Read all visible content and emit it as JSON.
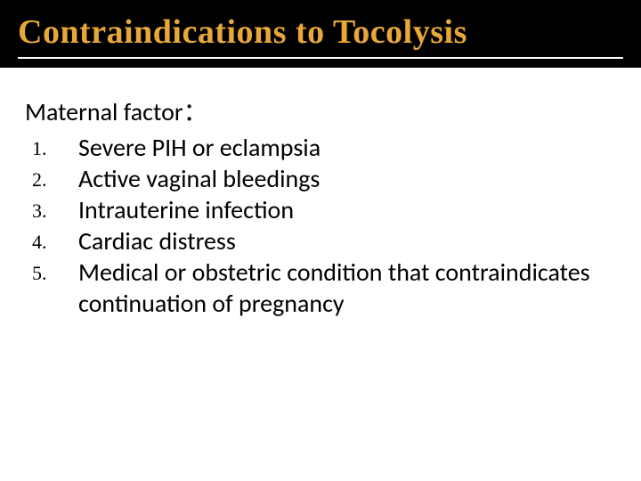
{
  "title": "Contraindications to Tocolysis",
  "subheading": "Maternal factor：",
  "items": [
    "Severe PIH or eclampsia",
    "Active vaginal bleedings",
    "Intrauterine infection",
    "Cardiac distress",
    "Medical or obstetric condition that contraindicates continuation of pregnancy"
  ],
  "colors": {
    "title_bg": "#000000",
    "title_fg": "#e8a839",
    "body_bg": "#ffffff",
    "text": "#000000",
    "rule": "#ffffff"
  },
  "fonts": {
    "title_size": 38,
    "body_size": 28,
    "number_size": 22
  }
}
